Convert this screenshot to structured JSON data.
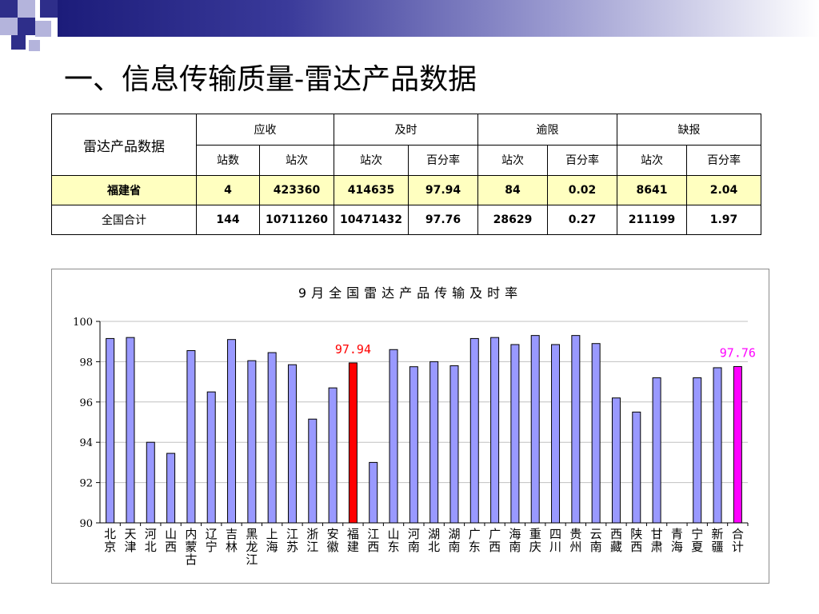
{
  "slide": {
    "title": "一、信息传输质量-雷达产品数据"
  },
  "colors": {
    "deco_dark": "#2e2e8a",
    "deco_light": "#b4b4dc",
    "bar_default": "#9999ff",
    "bar_fujian": "#ff0000",
    "bar_total": "#ff00ff",
    "label_fujian": "#ff0000",
    "label_total": "#ff00ff",
    "highlight_row": "#ffffc0"
  },
  "table": {
    "row_header": "雷达产品数据",
    "groups": [
      "应收",
      "及时",
      "逾限",
      "缺报"
    ],
    "subheaders": [
      "站数",
      "站次",
      "站次",
      "百分率",
      "站次",
      "百分率",
      "站次",
      "百分率"
    ],
    "rows": [
      {
        "name": "福建省",
        "values": [
          "4",
          "423360",
          "414635",
          "97.94",
          "84",
          "0.02",
          "8641",
          "2.04"
        ]
      },
      {
        "name": "全国合计",
        "values": [
          "144",
          "10711260",
          "10471432",
          "97.76",
          "28629",
          "0.27",
          "211199",
          "1.97"
        ]
      }
    ]
  },
  "chart_data": {
    "type": "bar",
    "title": "9月全国雷达产品传输及时率",
    "ylim": [
      90,
      100
    ],
    "yticks": [
      90,
      92,
      94,
      96,
      98,
      100
    ],
    "grid": true,
    "categories": [
      "北京",
      "天津",
      "河北",
      "山西",
      "内蒙古",
      "辽宁",
      "吉林",
      "黑龙江",
      "上海",
      "江苏",
      "浙江",
      "安徽",
      "福建",
      "江西",
      "山东",
      "河南",
      "湖北",
      "湖南",
      "广东",
      "广西",
      "海南",
      "重庆",
      "四川",
      "贵州",
      "云南",
      "西藏",
      "陕西",
      "甘肃",
      "青海",
      "宁夏",
      "新疆",
      "合计"
    ],
    "values": [
      99.15,
      99.2,
      94.0,
      93.45,
      98.55,
      96.5,
      99.1,
      98.05,
      98.45,
      97.85,
      95.15,
      96.7,
      97.94,
      93.0,
      98.6,
      97.75,
      98.0,
      97.8,
      99.15,
      99.2,
      98.85,
      99.3,
      98.85,
      99.3,
      98.9,
      96.2,
      95.5,
      97.2,
      90.0,
      97.2,
      97.7,
      97.76
    ],
    "data_labels": [
      {
        "category": "福建",
        "text": "97.94"
      },
      {
        "category": "合计",
        "text": "97.76"
      }
    ]
  }
}
